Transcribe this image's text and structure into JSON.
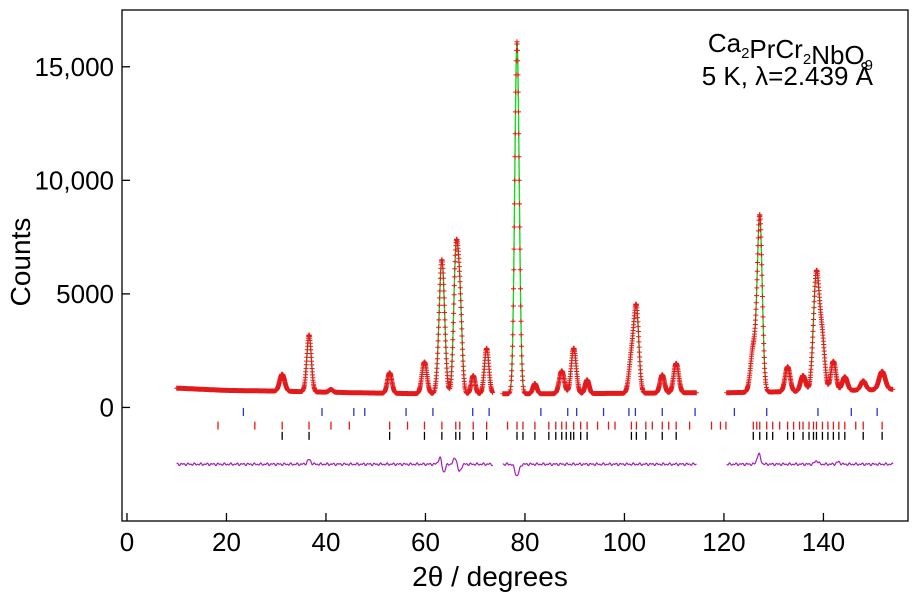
{
  "chart_data": {
    "type": "line",
    "xlabel": "2θ / degrees",
    "ylabel": "Counts",
    "xlim": [
      -1,
      157
    ],
    "ylim": [
      -5000,
      17500
    ],
    "xticks": [
      0,
      20,
      40,
      60,
      80,
      100,
      120,
      140
    ],
    "xtick_labels": [
      "0",
      "20",
      "40",
      "60",
      "80",
      "100",
      "120",
      "140"
    ],
    "yticks": [
      0,
      5000,
      10000,
      15000
    ],
    "ytick_labels": [
      "0",
      "5000",
      "10,000",
      "15,000"
    ],
    "annotation_lines": [
      "Ca₂PrCr₂NbO₉",
      "5 K, λ=2.439 Å"
    ],
    "excluded_regions": [
      [
        73.5,
        75.5
      ],
      [
        114.5,
        120.5
      ]
    ],
    "x_range": [
      10,
      154
    ],
    "background": [
      [
        10,
        850
      ],
      [
        20,
        750
      ],
      [
        30,
        720
      ],
      [
        45,
        650
      ],
      [
        60,
        600
      ],
      [
        80,
        600
      ],
      [
        100,
        620
      ],
      [
        115,
        650
      ],
      [
        121,
        650
      ],
      [
        135,
        700
      ],
      [
        154,
        800
      ]
    ],
    "peaks": [
      [
        31.2,
        750,
        0.5
      ],
      [
        36.6,
        2500,
        0.45
      ],
      [
        41.0,
        120,
        0.4
      ],
      [
        52.8,
        900,
        0.45
      ],
      [
        59.8,
        1400,
        0.5
      ],
      [
        63.3,
        5900,
        0.55
      ],
      [
        66.1,
        5700,
        0.45
      ],
      [
        66.9,
        4000,
        0.45
      ],
      [
        69.6,
        800,
        0.4
      ],
      [
        72.3,
        2000,
        0.45
      ],
      [
        78.4,
        15500,
        0.45
      ],
      [
        82.0,
        450,
        0.4
      ],
      [
        87.4,
        1000,
        0.5
      ],
      [
        89.8,
        2000,
        0.5
      ],
      [
        92.5,
        600,
        0.4
      ],
      [
        101.4,
        1500,
        0.5
      ],
      [
        102.4,
        3700,
        0.5
      ],
      [
        107.6,
        800,
        0.45
      ],
      [
        110.4,
        1300,
        0.5
      ],
      [
        125.9,
        1900,
        0.55
      ],
      [
        127.2,
        7700,
        0.5
      ],
      [
        132.8,
        1100,
        0.5
      ],
      [
        135.9,
        700,
        0.5
      ],
      [
        138.6,
        5200,
        0.6
      ],
      [
        139.8,
        2000,
        0.5
      ],
      [
        142.0,
        1300,
        0.5
      ],
      [
        144.3,
        600,
        0.5
      ],
      [
        148.0,
        400,
        0.5
      ],
      [
        151.8,
        800,
        0.6
      ]
    ],
    "diff_baseline": -2500,
    "diff_features": [
      [
        36.6,
        200
      ],
      [
        63.0,
        350
      ],
      [
        63.6,
        -400
      ],
      [
        66.0,
        300
      ],
      [
        66.8,
        -350
      ],
      [
        78.2,
        -300
      ],
      [
        78.6,
        -300
      ],
      [
        127.0,
        450
      ],
      [
        138.6,
        150
      ],
      [
        143.0,
        100
      ]
    ],
    "tick_rows": [
      {
        "name": "phase-blue",
        "color": "#2b35c8",
        "y": -200,
        "positions": [
          23.4,
          39.2,
          45.6,
          47.8,
          56.1,
          61.5,
          69.5,
          72.8,
          83.2,
          88.6,
          90.4,
          95.8,
          100.9,
          102.2,
          107.6,
          114.2,
          122.1,
          128.6,
          138.9,
          145.6,
          150.8
        ]
      },
      {
        "name": "phase-red",
        "color": "#e31a1c",
        "y": -800,
        "positions": [
          18.3,
          25.7,
          31.2,
          36.6,
          41.0,
          44.7,
          52.8,
          56.4,
          59.8,
          63.3,
          66.1,
          66.9,
          69.6,
          72.3,
          76.5,
          78.4,
          79.6,
          82.0,
          84.8,
          86.2,
          87.4,
          88.3,
          89.8,
          91.2,
          92.5,
          94.6,
          96.8,
          98.1,
          101.4,
          102.4,
          104.3,
          105.6,
          107.6,
          108.9,
          110.4,
          113.1,
          117.5,
          119.3,
          120.4,
          125.9,
          126.6,
          127.2,
          128.6,
          129.8,
          131.2,
          132.8,
          134.0,
          135.2,
          135.9,
          137.1,
          138.0,
          138.6,
          139.8,
          140.9,
          142.0,
          143.1,
          144.3,
          146.5,
          148.0,
          151.8
        ]
      },
      {
        "name": "phase-black",
        "color": "#000000",
        "y": -1250,
        "positions": [
          31.2,
          36.6,
          52.8,
          59.8,
          63.3,
          66.1,
          66.9,
          69.6,
          72.3,
          78.4,
          79.6,
          82.0,
          84.8,
          86.2,
          87.4,
          88.3,
          89.2,
          89.8,
          91.2,
          92.5,
          101.4,
          102.4,
          104.3,
          107.6,
          110.4,
          125.9,
          127.2,
          128.6,
          129.8,
          132.8,
          134.0,
          135.9,
          137.1,
          138.0,
          138.6,
          139.8,
          140.9,
          142.0,
          143.1,
          144.3,
          148.0,
          151.8
        ]
      }
    ],
    "colors": {
      "observed": "#e31a1c",
      "calculated": "#18d818",
      "difference": "#a11fb5",
      "axis": "#000000"
    }
  }
}
